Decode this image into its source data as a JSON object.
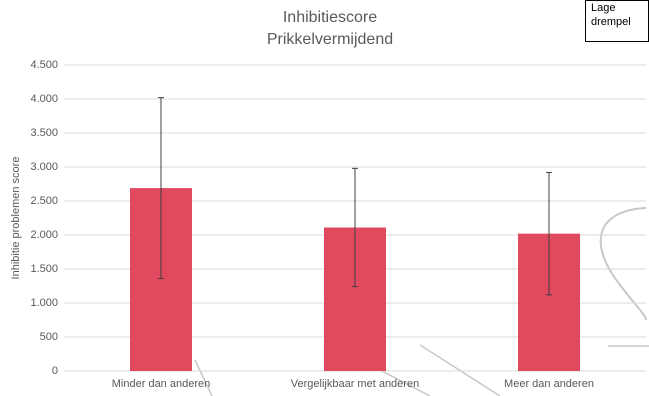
{
  "chart_data": {
    "type": "bar",
    "title": "Inhibitiescore",
    "subtitle": "Prikkelvermijdend",
    "annotation": "Lage drempel",
    "y_label": "Inhibitie problemen score",
    "categories": [
      "Minder dan anderen",
      "Vergelijkbaar met anderen",
      "Meer dan anderen"
    ],
    "values": [
      2690,
      2110,
      2020
    ],
    "errors": [
      1330,
      870,
      900
    ],
    "color": "#e0495e",
    "ylim": [
      0,
      4500
    ],
    "yticks": [
      {
        "value": 0,
        "label": "0"
      },
      {
        "value": 500,
        "label": "500"
      },
      {
        "value": 1000,
        "label": "1.000"
      },
      {
        "value": 1500,
        "label": "1.500"
      },
      {
        "value": 2000,
        "label": "2.000"
      },
      {
        "value": 2500,
        "label": "2.500"
      },
      {
        "value": 3000,
        "label": "3.000"
      },
      {
        "value": 3500,
        "label": "3.500"
      },
      {
        "value": 4000,
        "label": "4.000"
      },
      {
        "value": 4500,
        "label": "4.500"
      }
    ],
    "grid": true
  }
}
